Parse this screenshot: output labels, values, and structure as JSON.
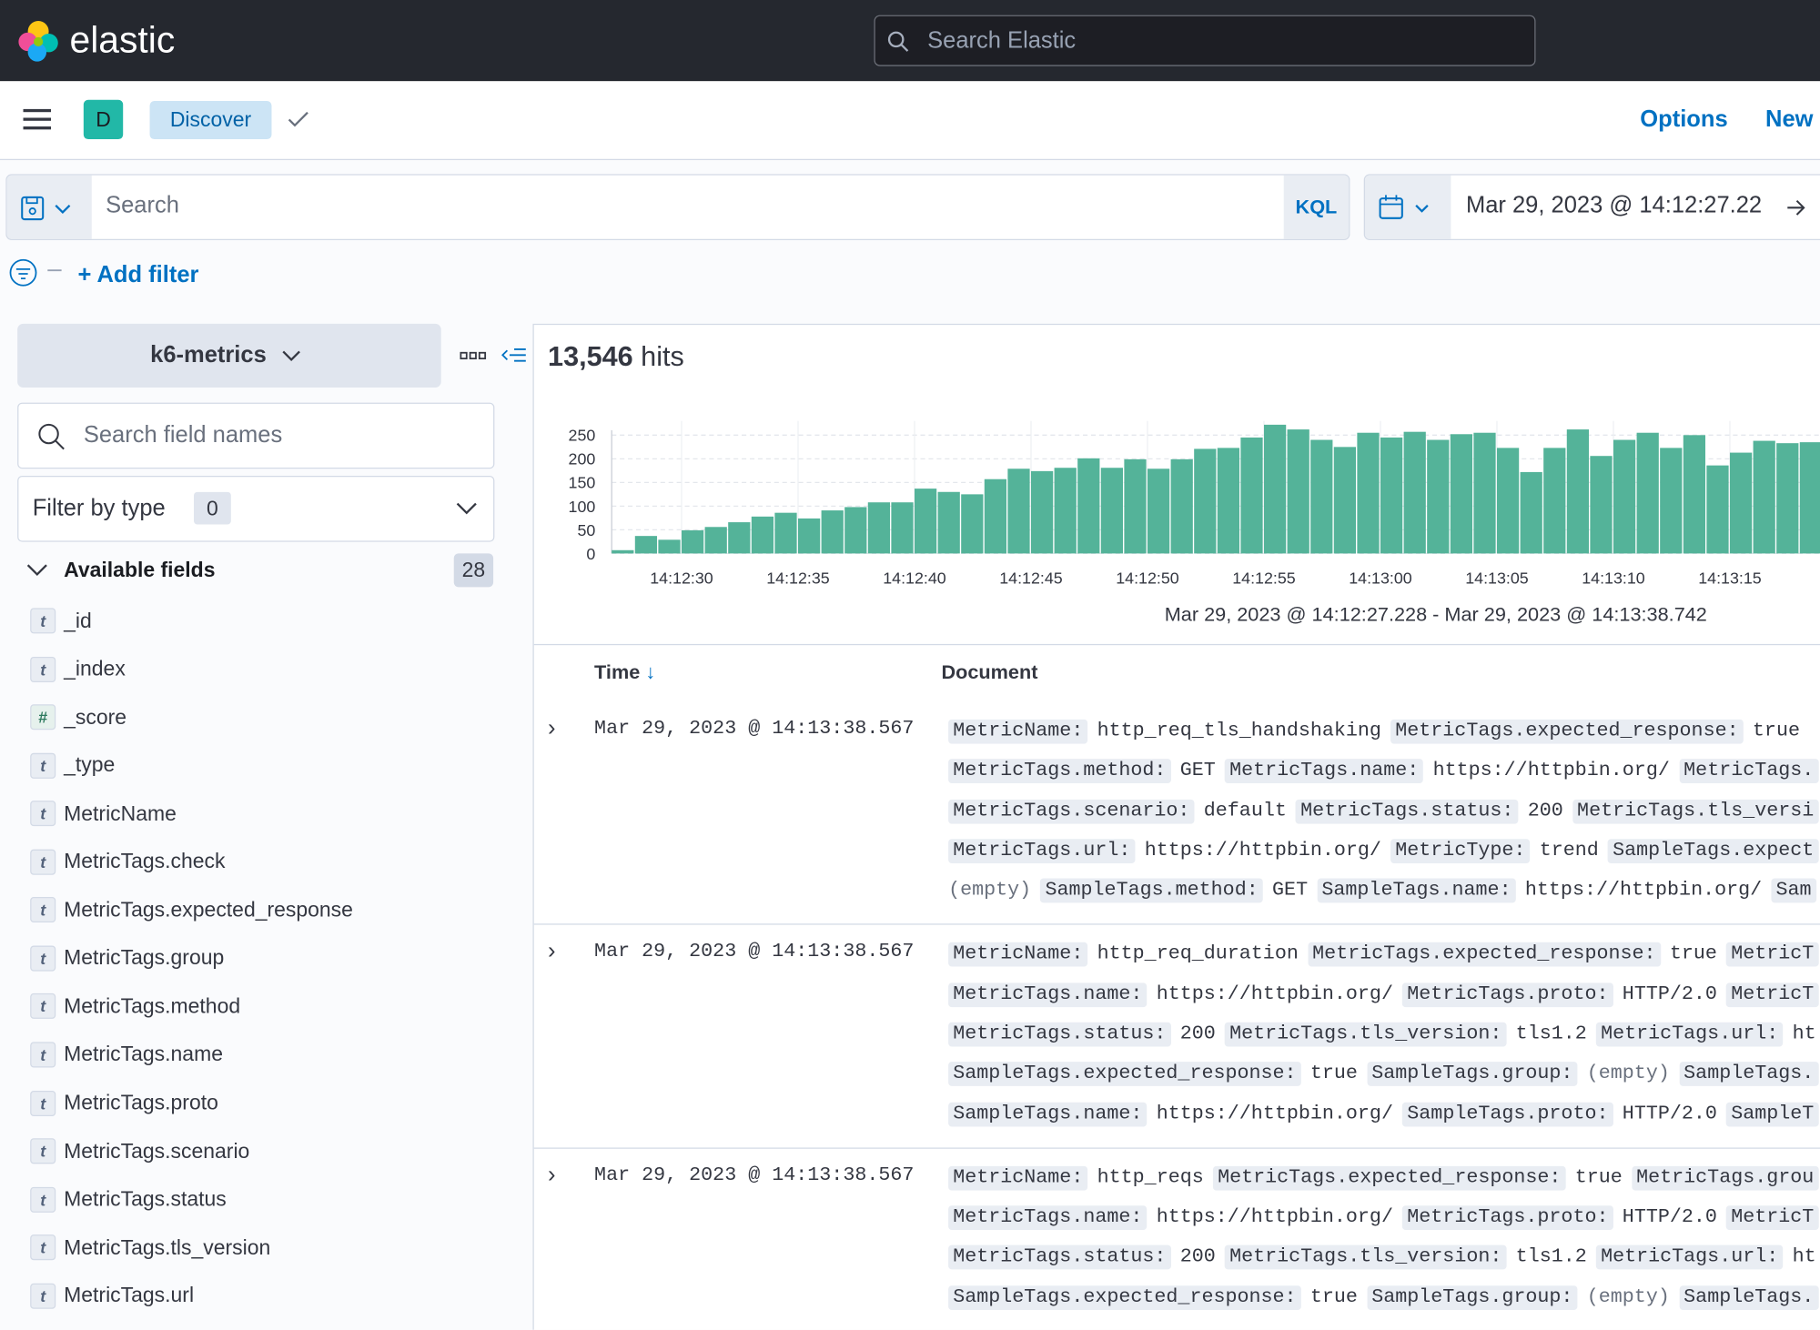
{
  "header": {
    "logo": "elastic",
    "search_placeholder": "Search Elastic"
  },
  "nav": {
    "avatar": "D",
    "app": "Discover",
    "options": "Options",
    "new": "New"
  },
  "query": {
    "placeholder": "Search",
    "language": "KQL",
    "time_start": "Mar 29, 2023 @ 14:12:27.22",
    "add_filter": "+ Add filter"
  },
  "sidebar": {
    "index_pattern": "k6-metrics",
    "search_placeholder": "Search field names",
    "filter_label": "Filter by type",
    "filter_count": "0",
    "available_label": "Available fields",
    "available_count": "28",
    "fields": [
      {
        "type": "t",
        "name": "_id"
      },
      {
        "type": "t",
        "name": "_index"
      },
      {
        "type": "#",
        "name": "_score"
      },
      {
        "type": "t",
        "name": "_type"
      },
      {
        "type": "t",
        "name": "MetricName"
      },
      {
        "type": "t",
        "name": "MetricTags.check"
      },
      {
        "type": "t",
        "name": "MetricTags.expected_response"
      },
      {
        "type": "t",
        "name": "MetricTags.group"
      },
      {
        "type": "t",
        "name": "MetricTags.method"
      },
      {
        "type": "t",
        "name": "MetricTags.name"
      },
      {
        "type": "t",
        "name": "MetricTags.proto"
      },
      {
        "type": "t",
        "name": "MetricTags.scenario"
      },
      {
        "type": "t",
        "name": "MetricTags.status"
      },
      {
        "type": "t",
        "name": "MetricTags.tls_version"
      },
      {
        "type": "t",
        "name": "MetricTags.url"
      }
    ]
  },
  "main": {
    "hits_count": "13,546",
    "hits_label": "hits",
    "histogram": {
      "type": "bar",
      "color": "#54b399",
      "categories": [
        null,
        null,
        null,
        "14:12:30",
        null,
        null,
        null,
        null,
        "14:12:35",
        null,
        null,
        null,
        null,
        "14:12:40",
        null,
        null,
        null,
        null,
        "14:12:45",
        null,
        null,
        null,
        null,
        "14:12:50",
        null,
        null,
        null,
        null,
        "14:12:55",
        null,
        null,
        null,
        null,
        "14:13:00",
        null,
        null,
        null,
        null,
        "14:13:05",
        null,
        null,
        null,
        null,
        "14:13:10",
        null,
        null,
        null,
        null,
        "14:13:15",
        null,
        null,
        null
      ],
      "values": [
        7,
        37,
        29,
        49,
        56,
        66,
        78,
        86,
        74,
        91,
        98,
        108,
        108,
        137,
        130,
        125,
        157,
        179,
        174,
        181,
        201,
        181,
        199,
        179,
        199,
        221,
        223,
        245,
        272,
        262,
        240,
        225,
        255,
        245,
        257,
        240,
        252,
        255,
        223,
        172,
        223,
        262,
        206,
        240,
        255,
        223,
        250,
        186,
        213,
        238,
        233,
        235
      ],
      "ylim": [
        0,
        280
      ],
      "yticks": [
        0,
        50,
        100,
        150,
        200,
        250
      ],
      "grid": true
    },
    "range": "Mar 29, 2023 @ 14:12:27.228 - Mar 29, 2023 @ 14:13:38.742",
    "columns": [
      "Time",
      "Document"
    ],
    "rows": [
      {
        "time": "Mar 29, 2023 @ 14:13:38.567",
        "lines": [
          [
            {
              "k": "MetricName:",
              "v": "http_req_tls_handshaking"
            },
            {
              "k": "MetricTags.expected_response:",
              "v": "true"
            }
          ],
          [
            {
              "k": "MetricTags.method:",
              "v": "GET"
            },
            {
              "k": "MetricTags.name:",
              "v": "https://httpbin.org/"
            },
            {
              "k": "MetricTags."
            }
          ],
          [
            {
              "k": "MetricTags.scenario:",
              "v": "default"
            },
            {
              "k": "MetricTags.status:",
              "v": "200"
            },
            {
              "k": "MetricTags.tls_versi"
            }
          ],
          [
            {
              "k": "MetricTags.url:",
              "v": "https://httpbin.org/"
            },
            {
              "k": "MetricType:",
              "v": "trend"
            },
            {
              "k": "SampleTags.expect"
            }
          ],
          [
            {
              "e": "(empty)"
            },
            {
              "k": "SampleTags.method:",
              "v": "GET"
            },
            {
              "k": "SampleTags.name:",
              "v": "https://httpbin.org/"
            },
            {
              "k": "Sam"
            }
          ]
        ]
      },
      {
        "time": "Mar 29, 2023 @ 14:13:38.567",
        "lines": [
          [
            {
              "k": "MetricName:",
              "v": "http_req_duration"
            },
            {
              "k": "MetricTags.expected_response:",
              "v": "true"
            },
            {
              "k": "MetricT"
            }
          ],
          [
            {
              "k": "MetricTags.name:",
              "v": "https://httpbin.org/"
            },
            {
              "k": "MetricTags.proto:",
              "v": "HTTP/2.0"
            },
            {
              "k": "MetricT"
            }
          ],
          [
            {
              "k": "MetricTags.status:",
              "v": "200"
            },
            {
              "k": "MetricTags.tls_version:",
              "v": "tls1.2"
            },
            {
              "k": "MetricTags.url:",
              "v": "ht"
            }
          ],
          [
            {
              "k": "SampleTags.expected_response:",
              "v": "true"
            },
            {
              "k": "SampleTags.group:",
              "e": "(empty)"
            },
            {
              "k": "SampleTags."
            }
          ],
          [
            {
              "k": "SampleTags.name:",
              "v": "https://httpbin.org/"
            },
            {
              "k": "SampleTags.proto:",
              "v": "HTTP/2.0"
            },
            {
              "k": "SampleT"
            }
          ]
        ]
      },
      {
        "time": "Mar 29, 2023 @ 14:13:38.567",
        "lines": [
          [
            {
              "k": "MetricName:",
              "v": "http_reqs"
            },
            {
              "k": "MetricTags.expected_response:",
              "v": "true"
            },
            {
              "k": "MetricTags.grou"
            }
          ],
          [
            {
              "k": "MetricTags.name:",
              "v": "https://httpbin.org/"
            },
            {
              "k": "MetricTags.proto:",
              "v": "HTTP/2.0"
            },
            {
              "k": "MetricT"
            }
          ],
          [
            {
              "k": "MetricTags.status:",
              "v": "200"
            },
            {
              "k": "MetricTags.tls_version:",
              "v": "tls1.2"
            },
            {
              "k": "MetricTags.url:",
              "v": "ht"
            }
          ],
          [
            {
              "k": "SampleTags.expected_response:",
              "v": "true"
            },
            {
              "k": "SampleTags.group:",
              "e": "(empty)"
            },
            {
              "k": "SampleTags."
            }
          ]
        ]
      }
    ]
  }
}
